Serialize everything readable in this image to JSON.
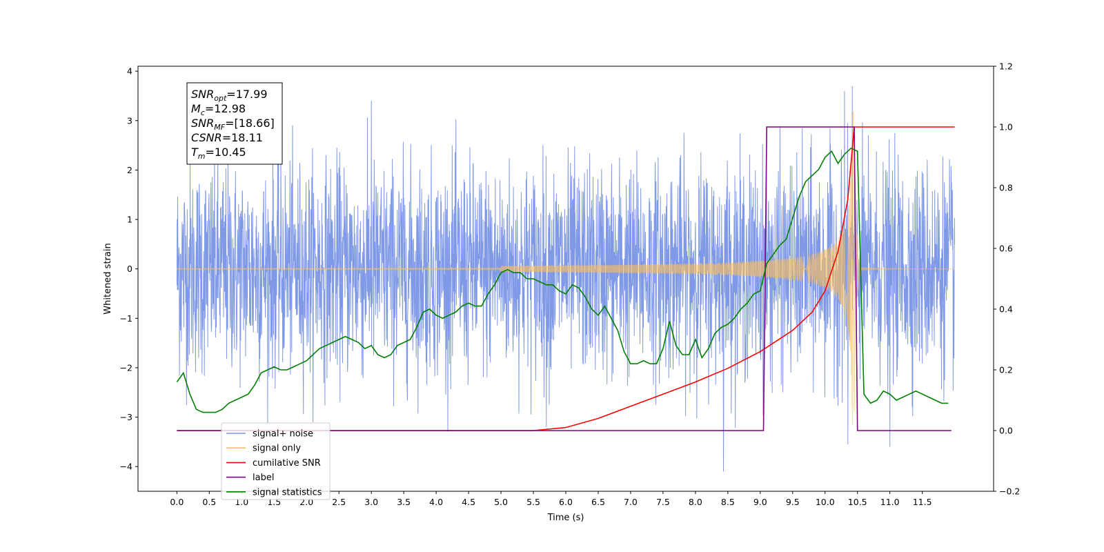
{
  "chart_data": {
    "type": "line",
    "xlabel": "Time (s)",
    "ylabel": "Whitened strain",
    "xlim": [
      -0.6,
      12.6
    ],
    "ylim_left": [
      -4.5,
      4.1
    ],
    "ylim_right": [
      -0.2,
      1.2
    ],
    "x_ticks": [
      "0.0",
      "0.5",
      "1.0",
      "1.5",
      "2.0",
      "2.5",
      "3.0",
      "3.5",
      "4.0",
      "4.5",
      "5.0",
      "5.5",
      "6.0",
      "6.5",
      "7.0",
      "7.5",
      "8.0",
      "8.5",
      "9.0",
      "9.5",
      "10.0",
      "10.5",
      "11.0",
      "11.5"
    ],
    "y_left_ticks": [
      "−4",
      "−3",
      "−2",
      "−1",
      "0",
      "1",
      "2",
      "3",
      "4"
    ],
    "y_right_ticks": [
      "−0.2",
      "0.0",
      "0.2",
      "0.4",
      "0.6",
      "0.8",
      "1.0",
      "1.2"
    ],
    "grid": false,
    "legend_position": "lower-left",
    "annotation": {
      "lines": [
        {
          "sym": "SNR",
          "sub": "opt",
          "val": "=17.99"
        },
        {
          "sym": "M",
          "sub": "c",
          "val": "=12.98"
        },
        {
          "sym": "SNR",
          "sub": "MF",
          "val": "=[18.66]"
        },
        {
          "sym": "CSNR",
          "sub": "",
          "val": "=18.11"
        },
        {
          "sym": "T",
          "sub": "m",
          "val": "=10.45"
        }
      ]
    },
    "series": [
      {
        "name": "signal+ noise",
        "axis": "left",
        "color": "#7893e6",
        "kind": "noise",
        "x_range": [
          0.0,
          12.0
        ],
        "envelope": [
          -2.5,
          2.5
        ],
        "extremes": [
          [
            3.0,
            3.4
          ],
          [
            5.7,
            -3.2
          ],
          [
            8.43,
            -4.1
          ],
          [
            10.3,
            3.6
          ],
          [
            10.42,
            3.7
          ],
          [
            10.35,
            -3.55
          ],
          [
            11.0,
            -3.6
          ]
        ]
      },
      {
        "name": "signal only",
        "axis": "left",
        "color": "#ffbf55",
        "kind": "chirp",
        "merger_time": 10.45,
        "peak_amplitude": 3.2,
        "ringdown_min": -2.9
      },
      {
        "name": "cumilative SNR",
        "axis": "right",
        "color": "#ff0000",
        "x": [
          0,
          5.5,
          6.0,
          6.5,
          7.0,
          7.5,
          8.0,
          8.5,
          9.0,
          9.5,
          9.8,
          10.0,
          10.2,
          10.35,
          10.45,
          10.5,
          12.0
        ],
        "y": [
          0,
          0.0,
          0.01,
          0.04,
          0.08,
          0.12,
          0.16,
          0.205,
          0.26,
          0.33,
          0.39,
          0.46,
          0.59,
          0.76,
          1.0,
          1.0,
          1.0
        ]
      },
      {
        "name": "label",
        "axis": "right",
        "color": "#800080",
        "x": [
          0,
          9.05,
          9.1,
          10.45,
          10.5,
          11.95
        ],
        "y": [
          0,
          0,
          1,
          1,
          0,
          0
        ]
      },
      {
        "name": "signal statistics",
        "axis": "right",
        "color": "#008000",
        "x": [
          0,
          0.1,
          0.2,
          0.3,
          0.4,
          0.5,
          0.6,
          0.7,
          0.8,
          0.9,
          1.0,
          1.1,
          1.2,
          1.3,
          1.4,
          1.5,
          1.6,
          1.7,
          1.8,
          1.9,
          2.0,
          2.1,
          2.2,
          2.3,
          2.4,
          2.5,
          2.6,
          2.7,
          2.8,
          2.9,
          3.0,
          3.1,
          3.2,
          3.3,
          3.4,
          3.5,
          3.6,
          3.7,
          3.8,
          3.9,
          4.0,
          4.1,
          4.2,
          4.3,
          4.4,
          4.5,
          4.6,
          4.7,
          4.8,
          4.9,
          5.0,
          5.1,
          5.2,
          5.3,
          5.4,
          5.5,
          5.6,
          5.7,
          5.8,
          5.9,
          6.0,
          6.1,
          6.2,
          6.3,
          6.4,
          6.5,
          6.6,
          6.7,
          6.8,
          6.9,
          7.0,
          7.1,
          7.2,
          7.3,
          7.4,
          7.5,
          7.6,
          7.7,
          7.8,
          7.9,
          8.0,
          8.1,
          8.2,
          8.3,
          8.4,
          8.5,
          8.6,
          8.7,
          8.8,
          8.9,
          9.0,
          9.1,
          9.2,
          9.3,
          9.4,
          9.5,
          9.6,
          9.7,
          9.8,
          9.9,
          10.0,
          10.1,
          10.2,
          10.3,
          10.4,
          10.5,
          10.6,
          10.7,
          10.8,
          10.9,
          11.0,
          11.1,
          11.2,
          11.3,
          11.4,
          11.5,
          11.6,
          11.7,
          11.8,
          11.9
        ],
        "y": [
          0.16,
          0.19,
          0.12,
          0.07,
          0.06,
          0.06,
          0.06,
          0.07,
          0.09,
          0.1,
          0.11,
          0.12,
          0.15,
          0.19,
          0.2,
          0.21,
          0.2,
          0.2,
          0.21,
          0.22,
          0.23,
          0.25,
          0.27,
          0.28,
          0.29,
          0.3,
          0.31,
          0.3,
          0.29,
          0.27,
          0.28,
          0.25,
          0.24,
          0.25,
          0.28,
          0.29,
          0.3,
          0.34,
          0.39,
          0.4,
          0.38,
          0.37,
          0.38,
          0.39,
          0.41,
          0.42,
          0.41,
          0.41,
          0.45,
          0.48,
          0.52,
          0.53,
          0.52,
          0.52,
          0.5,
          0.5,
          0.49,
          0.48,
          0.48,
          0.46,
          0.45,
          0.48,
          0.47,
          0.44,
          0.4,
          0.38,
          0.41,
          0.37,
          0.33,
          0.26,
          0.22,
          0.22,
          0.23,
          0.22,
          0.22,
          0.27,
          0.36,
          0.28,
          0.25,
          0.25,
          0.3,
          0.24,
          0.27,
          0.32,
          0.34,
          0.35,
          0.37,
          0.4,
          0.42,
          0.45,
          0.46,
          0.55,
          0.58,
          0.61,
          0.63,
          0.7,
          0.77,
          0.82,
          0.84,
          0.86,
          0.9,
          0.92,
          0.88,
          0.91,
          0.93,
          0.92,
          0.12,
          0.09,
          0.1,
          0.13,
          0.12,
          0.1,
          0.11,
          0.12,
          0.13,
          0.12,
          0.11,
          0.1,
          0.09,
          0.09
        ]
      }
    ]
  }
}
